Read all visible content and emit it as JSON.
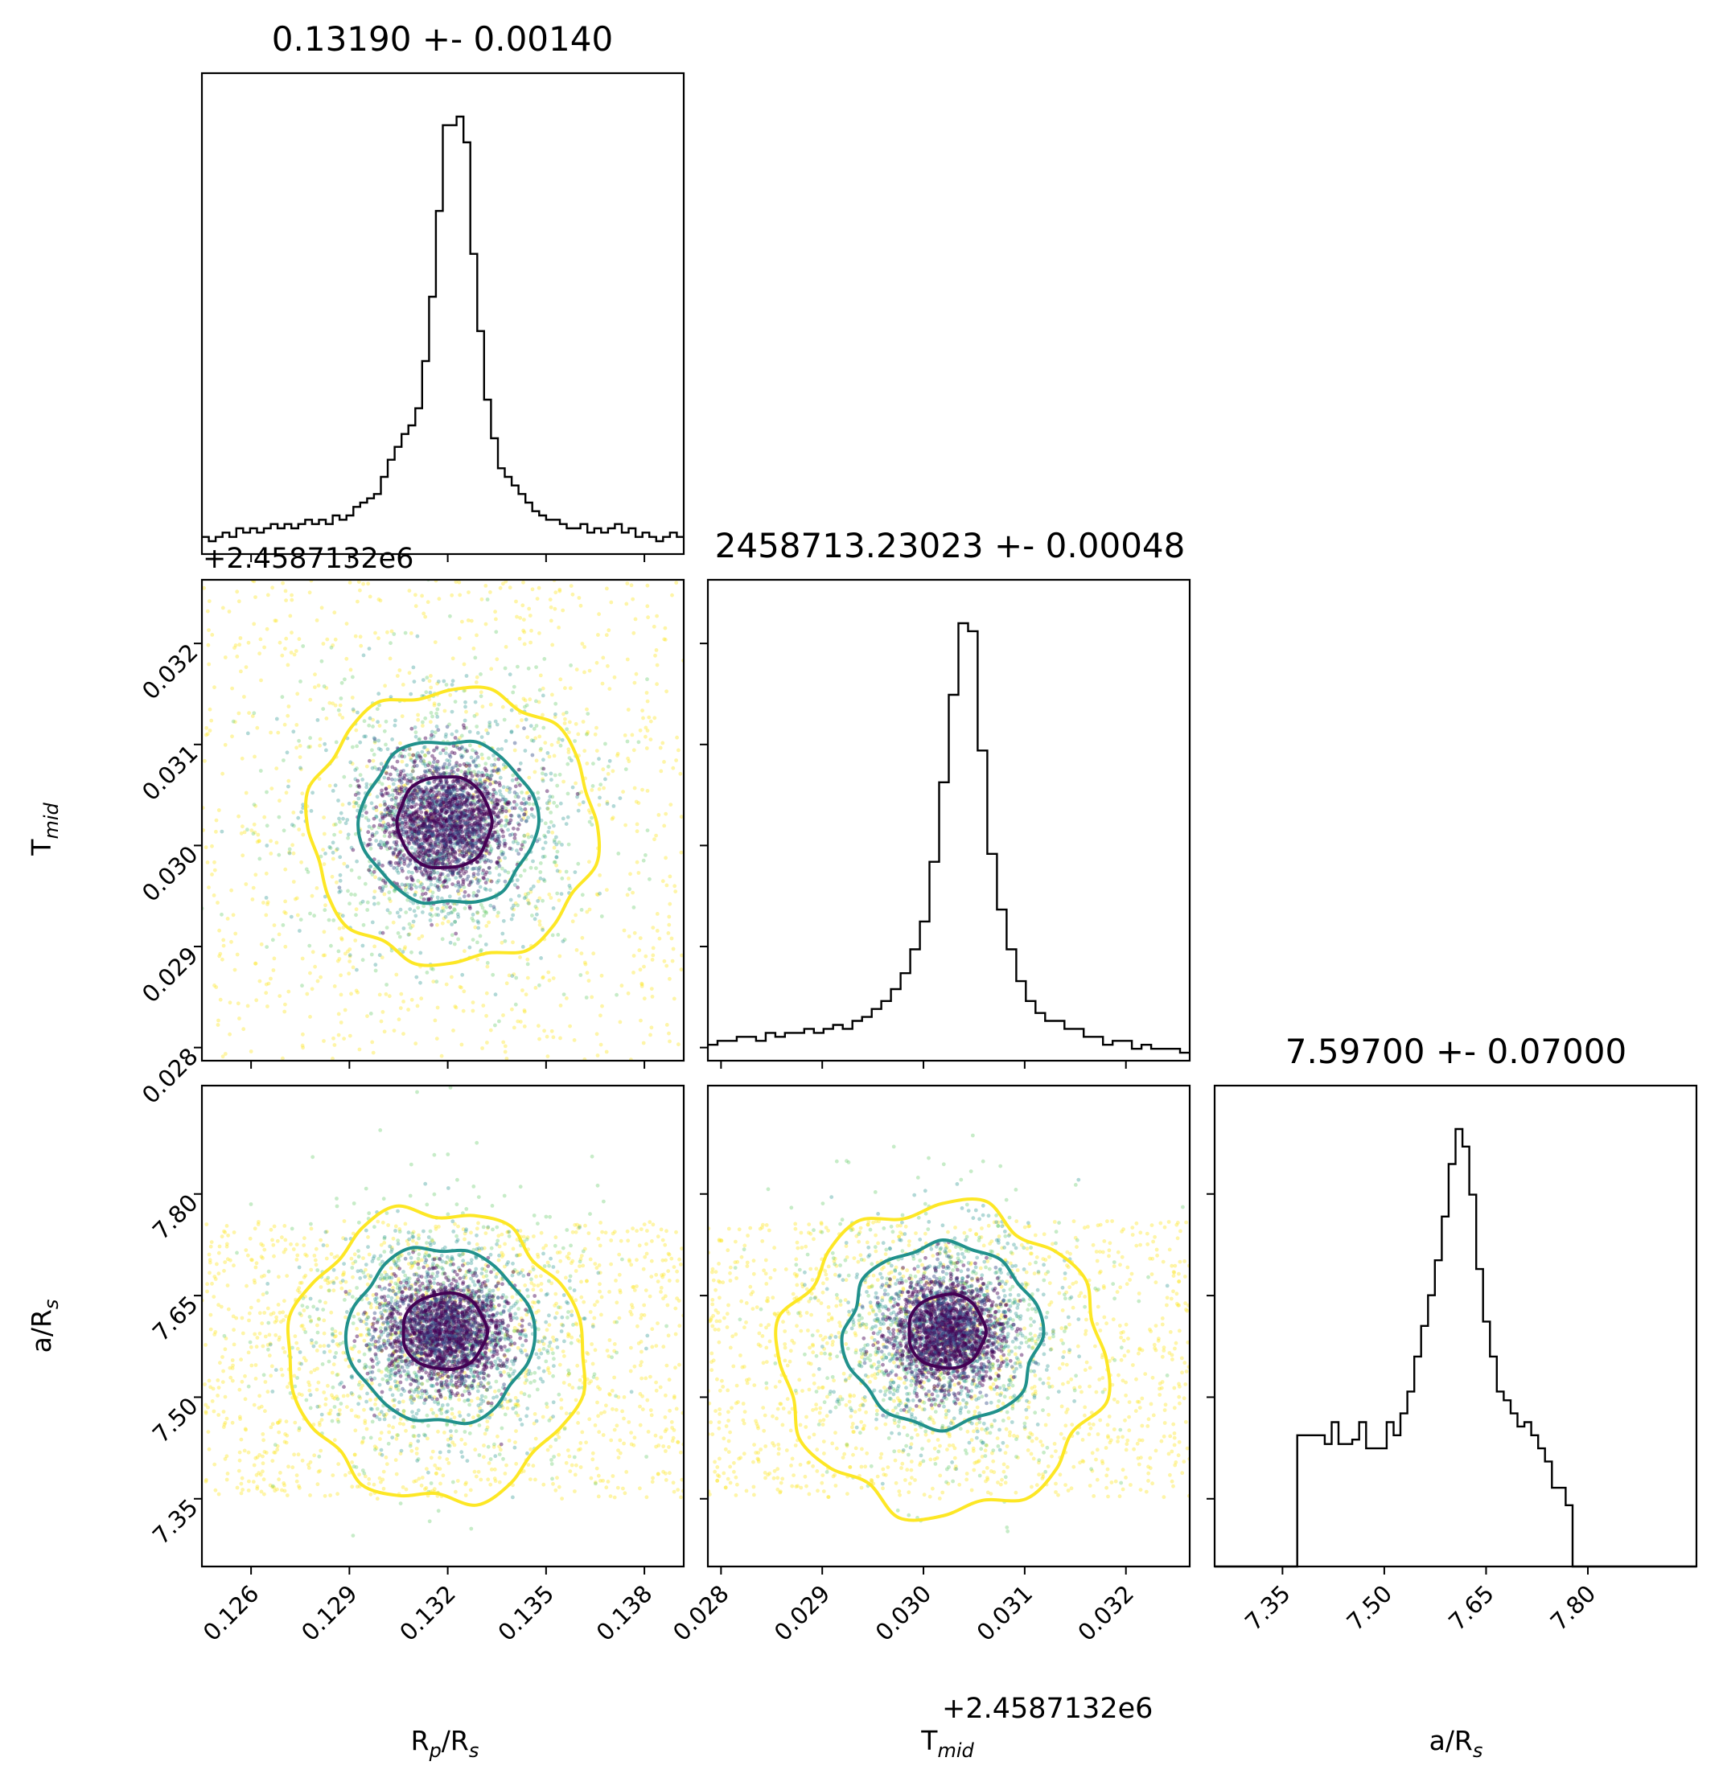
{
  "chart_data": {
    "type": "scatter",
    "subtype": "corner-plot",
    "parameters": [
      {
        "key": "rp",
        "label_main": "R",
        "label_sub1": "p",
        "label_mid": "/R",
        "label_sub2": "s",
        "title": "0.13190 +- 0.00140",
        "median": 0.1319,
        "sigma": 0.0014,
        "range": [
          0.1245,
          0.1392
        ],
        "ticks": [
          0.126,
          0.129,
          0.132,
          0.135,
          0.138
        ],
        "tick_labels": [
          "0.126",
          "0.129",
          "0.132",
          "0.135",
          "0.138"
        ],
        "offset": "+2.4587132e6"
      },
      {
        "key": "tmid",
        "label_main": "T",
        "label_sub1": "mid",
        "label_mid": "",
        "label_sub2": "",
        "title": "2458713.23023 +- 0.00048",
        "median": 0.03023,
        "sigma": 0.00048,
        "range": [
          0.02787,
          0.03263
        ],
        "ticks": [
          0.028,
          0.029,
          0.03,
          0.031,
          0.032
        ],
        "tick_labels": [
          "0.028",
          "0.029",
          "0.030",
          "0.031",
          "0.032"
        ],
        "offset": "+2.4587132e6"
      },
      {
        "key": "ars",
        "label_main": "a/R",
        "label_sub1": "s",
        "label_mid": "",
        "label_sub2": "",
        "title": "7.59700 +- 0.07000",
        "median": 7.597,
        "sigma": 0.07,
        "range": [
          7.25,
          7.96
        ],
        "ticks": [
          7.35,
          7.5,
          7.65,
          7.8
        ],
        "tick_labels": [
          "7.35",
          "7.50",
          "7.65",
          "7.80"
        ],
        "offset": ""
      }
    ],
    "histograms": {
      "rp": [
        4,
        3,
        4,
        5,
        4,
        6,
        5,
        6,
        5,
        6,
        7,
        6,
        7,
        6,
        7,
        8,
        7,
        8,
        7,
        9,
        8,
        9,
        11,
        12,
        13,
        14,
        18,
        22,
        25,
        28,
        30,
        34,
        45,
        60,
        80,
        100,
        100,
        102,
        96,
        70,
        52,
        36,
        27,
        20,
        18,
        16,
        14,
        12,
        10,
        9,
        8,
        8,
        7,
        6,
        6,
        7,
        5,
        6,
        5,
        6,
        7,
        5,
        6,
        4,
        5,
        4,
        3,
        4,
        5,
        4
      ],
      "tmid": [
        4,
        5,
        5,
        6,
        6,
        5,
        7,
        6,
        7,
        7,
        8,
        7,
        8,
        9,
        8,
        10,
        11,
        13,
        15,
        18,
        22,
        28,
        35,
        50,
        70,
        92,
        110,
        108,
        78,
        52,
        38,
        28,
        20,
        15,
        12,
        10,
        10,
        8,
        8,
        6,
        6,
        4,
        5,
        5,
        3,
        4,
        3,
        3,
        3,
        2
      ],
      "ars": [
        0,
        0,
        0,
        0,
        0,
        0,
        0,
        0,
        0,
        0,
        0,
        0,
        30,
        30,
        30,
        30,
        28,
        33,
        28,
        28,
        29,
        33,
        27,
        27,
        27,
        33,
        30,
        35,
        40,
        48,
        55,
        62,
        70,
        80,
        92,
        100,
        96,
        85,
        68,
        56,
        48,
        40,
        38,
        35,
        32,
        33,
        30,
        27,
        24,
        18,
        18,
        14,
        0,
        0,
        0,
        0,
        0,
        0,
        0,
        0,
        0,
        0,
        0,
        0,
        0,
        0,
        0,
        0,
        0,
        0
      ]
    },
    "bounds_ars": [
      7.35,
      7.76
    ],
    "offsets": {
      "rp_x": "+2.4587132e6",
      "tmid_x": "+2.4587132e6"
    },
    "contour_colors": [
      "#440154",
      "#21918c",
      "#fde725"
    ],
    "point_colors": [
      "#440154",
      "#3b528b",
      "#21918c",
      "#5ec962",
      "#fde725"
    ],
    "grid": false,
    "legend": "none"
  }
}
